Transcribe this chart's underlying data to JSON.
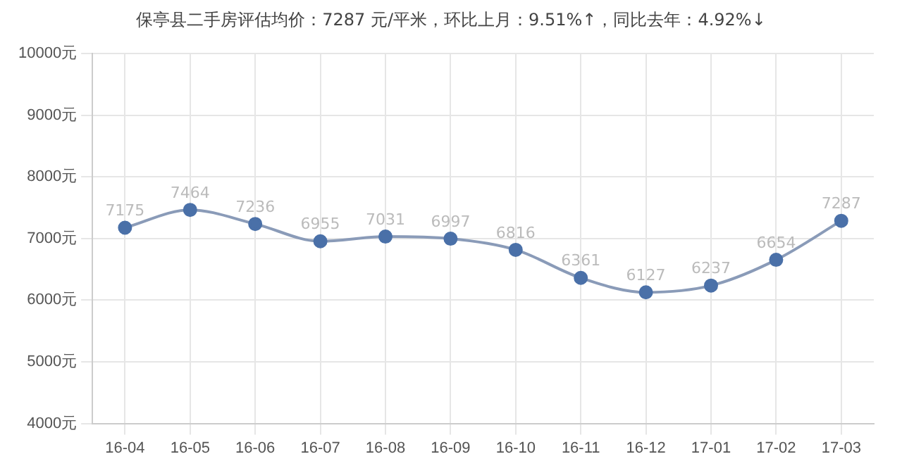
{
  "chart_data": {
    "type": "line",
    "title": "保亭县二手房评估均价：7287 元/平米，环比上月：9.51%↑，同比去年：4.92%↓",
    "categories": [
      "16-04",
      "16-05",
      "16-06",
      "16-07",
      "16-08",
      "16-09",
      "16-10",
      "16-11",
      "16-12",
      "17-01",
      "17-02",
      "17-03"
    ],
    "series": [
      {
        "color": "#4a70a8",
        "values": [
          7175,
          7464,
          7236,
          6955,
          7031,
          6997,
          6816,
          6361,
          6127,
          6237,
          6654,
          7287
        ]
      }
    ],
    "ylim": [
      4000,
      10000
    ],
    "yticks": [
      {
        "value": 4000,
        "label": "4000元"
      },
      {
        "value": 5000,
        "label": "5000元"
      },
      {
        "value": 6000,
        "label": "6000元"
      },
      {
        "value": 7000,
        "label": "7000元"
      },
      {
        "value": 8000,
        "label": "8000元"
      },
      {
        "value": 9000,
        "label": "9000元"
      },
      {
        "value": 10000,
        "label": "10000元"
      }
    ],
    "grid": true,
    "marker": "circle",
    "line_style": "solid",
    "data_labels": true
  }
}
